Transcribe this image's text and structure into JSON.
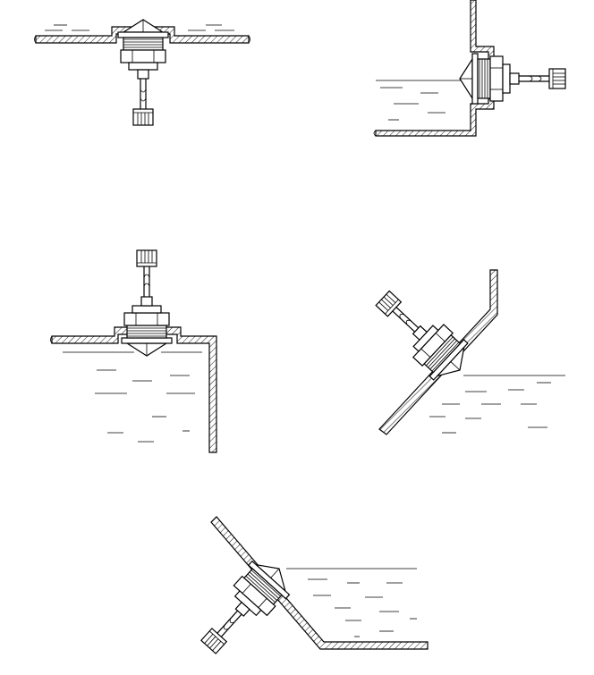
{
  "figure": {
    "description_free": true,
    "panels": [
      {
        "id": "top-mount",
        "label": ""
      },
      {
        "id": "side-wall-mount",
        "label": ""
      },
      {
        "id": "top-corner-mount",
        "label": ""
      },
      {
        "id": "inclined-wall-mount-right",
        "label": ""
      },
      {
        "id": "inclined-wall-mount-left",
        "label": ""
      }
    ],
    "colors": {
      "stroke": "#000000",
      "background": "#ffffff"
    }
  }
}
